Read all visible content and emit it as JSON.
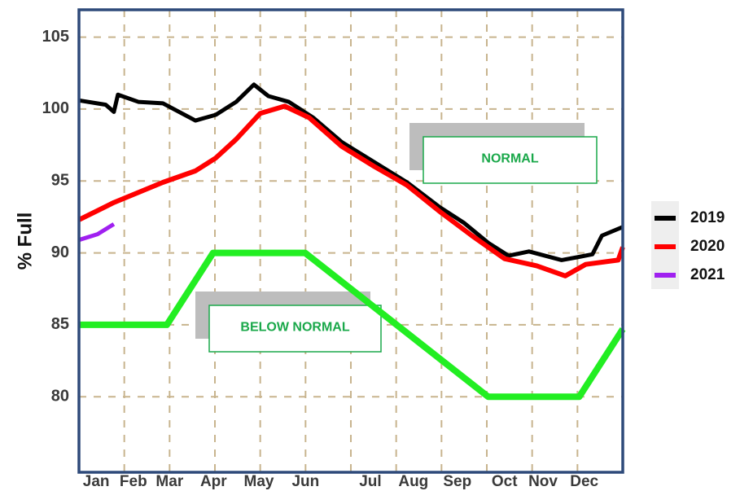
{
  "chart_data": {
    "type": "line",
    "y_label": "% Full",
    "xlim": [
      0,
      12
    ],
    "xticks": [
      {
        "value": 0.38,
        "label": "Jan"
      },
      {
        "value": 1.2,
        "label": "Feb"
      },
      {
        "value": 2.0,
        "label": "Mar"
      },
      {
        "value": 2.97,
        "label": "Apr"
      },
      {
        "value": 3.97,
        "label": "May"
      },
      {
        "value": 5.0,
        "label": "Jun"
      },
      {
        "value": 6.43,
        "label": "Jul"
      },
      {
        "value": 7.38,
        "label": "Aug"
      },
      {
        "value": 8.35,
        "label": "Sep"
      },
      {
        "value": 9.39,
        "label": "Oct"
      },
      {
        "value": 10.24,
        "label": "Nov"
      },
      {
        "value": 11.15,
        "label": "Dec"
      }
    ],
    "xgrid": [
      1,
      2,
      3,
      4,
      5,
      6,
      7,
      8,
      9,
      10,
      11
    ],
    "ylim": [
      74.75,
      106.9
    ],
    "yticks": [
      80,
      85,
      90,
      95,
      100,
      105
    ],
    "grid": true,
    "legend": "right",
    "series": [
      {
        "name": "2019",
        "color": "#000000",
        "x": [
          0,
          0.59,
          0.77,
          0.86,
          1.31,
          1.85,
          2.57,
          3.02,
          3.47,
          3.86,
          4.18,
          4.63,
          5.17,
          5.8,
          6.52,
          7.24,
          7.95,
          8.49,
          9.03,
          9.48,
          9.93,
          10.65,
          11.0,
          11.33,
          11.54,
          12
        ],
        "values": [
          100.6,
          100.3,
          99.8,
          101,
          100.5,
          100.4,
          99.2,
          99.6,
          100.5,
          101.7,
          100.9,
          100.5,
          99.4,
          97.7,
          96.3,
          94.9,
          93.2,
          92.1,
          90.7,
          89.8,
          90.1,
          89.5,
          89.7,
          89.9,
          91.2,
          91.8
        ]
      },
      {
        "name": "2020",
        "color": "#ff0000",
        "x": [
          0,
          0.77,
          1.85,
          2.57,
          3.02,
          3.47,
          4.0,
          4.54,
          5.08,
          5.8,
          6.52,
          7.24,
          7.95,
          8.67,
          9.39,
          10.1,
          10.73,
          11.18,
          11.9,
          12
        ],
        "values": [
          92.3,
          93.5,
          94.9,
          95.7,
          96.6,
          97.9,
          99.7,
          100.2,
          99.4,
          97.4,
          96.0,
          94.7,
          92.9,
          91.2,
          89.6,
          89.1,
          88.4,
          89.2,
          89.5,
          90.4
        ]
      },
      {
        "name": "2021",
        "color": "#a020f0",
        "x": [
          0,
          0.41,
          0.77
        ],
        "values": [
          90.9,
          91.3,
          92.0
        ]
      }
    ],
    "reference_line": {
      "color": "#22ee22",
      "x": [
        0,
        1.94,
        2.96,
        4.99,
        9.03,
        11.04,
        12
      ],
      "values": [
        85,
        85,
        90,
        90,
        80,
        80,
        84.7
      ]
    },
    "annotations": [
      "NORMAL",
      "BELOW NORMAL"
    ]
  }
}
